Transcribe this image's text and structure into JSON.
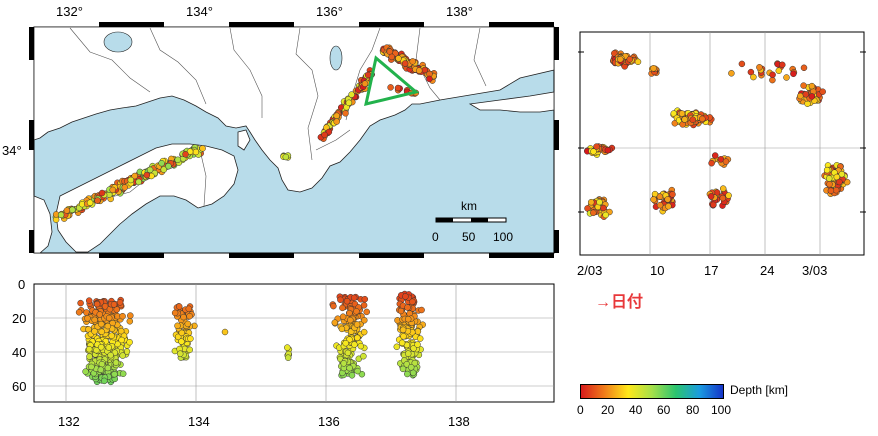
{
  "map": {
    "lon_ticks": [
      "132°",
      "134°",
      "136°",
      "138°"
    ],
    "lat_ticks": [
      "34°"
    ],
    "scale_bar": {
      "unit": "km",
      "labels": [
        "0",
        "50",
        "100"
      ]
    },
    "colors": {
      "sea": "#b8dcea",
      "land": "#ffffff",
      "border": "#555555",
      "highlight_box": "#22b24c"
    }
  },
  "depth_section": {
    "y_ticks": [
      "0",
      "20",
      "40",
      "60"
    ],
    "x_ticks": [
      "132",
      "134",
      "136",
      "138"
    ]
  },
  "time_panel": {
    "x_ticks": [
      "2/03",
      "10",
      "17",
      "24",
      "3/03"
    ],
    "annotation": "→日付",
    "annotation_color": "#e8383a"
  },
  "colorbar": {
    "title": "Depth [km]",
    "ticks": [
      "0",
      "20",
      "40",
      "60",
      "80",
      "100"
    ],
    "stops": [
      "#d7191c",
      "#f07c1a",
      "#ffe81a",
      "#a5e04a",
      "#2bc46f",
      "#1a9be0",
      "#1532c8"
    ]
  }
}
